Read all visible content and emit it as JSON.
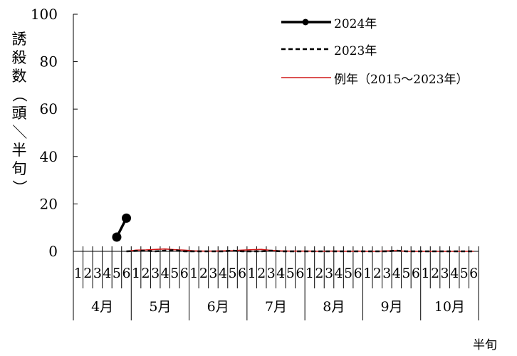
{
  "chart_data": {
    "type": "line",
    "ylabel": "誘殺数（頭／半旬）",
    "xlabel": "半旬",
    "ylim": [
      0,
      100
    ],
    "yticks": [
      0,
      20,
      40,
      60,
      80,
      100
    ],
    "months": [
      "4月",
      "5月",
      "6月",
      "7月",
      "8月",
      "9月",
      "10月"
    ],
    "pentad_labels": [
      "1",
      "2",
      "3",
      "4",
      "5",
      "6"
    ],
    "series": [
      {
        "name": "2024年",
        "style": "solid-marker",
        "color": "#000000",
        "values": [
          null,
          null,
          null,
          null,
          6,
          14
        ]
      },
      {
        "name": "2023年",
        "style": "dashed",
        "color": "#000000",
        "values": [
          null,
          null,
          null,
          null,
          null,
          0,
          0.2,
          0.3,
          0,
          0.3,
          0.5,
          0,
          0,
          0,
          0,
          0,
          0.3,
          0,
          0,
          0,
          0.3,
          0,
          0,
          0,
          0,
          0,
          0,
          0,
          0,
          0,
          0,
          0,
          0,
          0.3,
          0,
          0,
          0,
          0,
          0,
          0,
          0,
          0
        ]
      },
      {
        "name": "例年（2015～2023年）",
        "style": "solid",
        "color": "#d11a1a",
        "values": [
          null,
          null,
          null,
          null,
          null,
          0,
          0.5,
          0.6,
          0.8,
          1,
          0.7,
          0.5,
          0.2,
          0.1,
          0.1,
          0.2,
          0.3,
          0.5,
          0.7,
          0.8,
          0.4,
          0.2,
          0.1,
          0.1,
          0.1,
          0,
          0.1,
          0.1,
          0,
          0.1,
          0,
          0,
          0.2,
          0.3,
          0,
          0,
          0,
          0,
          0,
          0,
          0,
          0
        ]
      }
    ],
    "legend_position": "top-right"
  }
}
